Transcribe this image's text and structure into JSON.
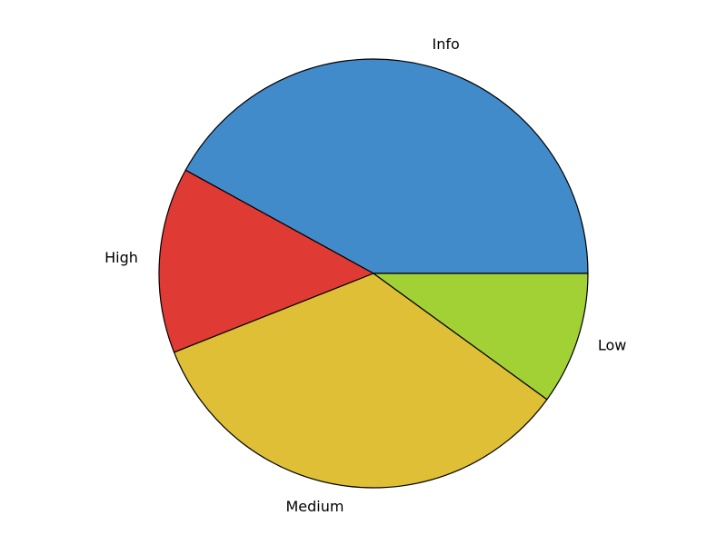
{
  "chart_data": {
    "type": "pie",
    "title": "",
    "start_angle_deg": 0,
    "direction": "counterclockwise",
    "slices": [
      {
        "label": "Info",
        "value": 42,
        "color": "#428bca"
      },
      {
        "label": "High",
        "value": 14,
        "color": "#e03a35"
      },
      {
        "label": "Medium",
        "value": 34,
        "color": "#dfbf36"
      },
      {
        "label": "Low",
        "value": 10,
        "color": "#a2d135"
      }
    ]
  }
}
